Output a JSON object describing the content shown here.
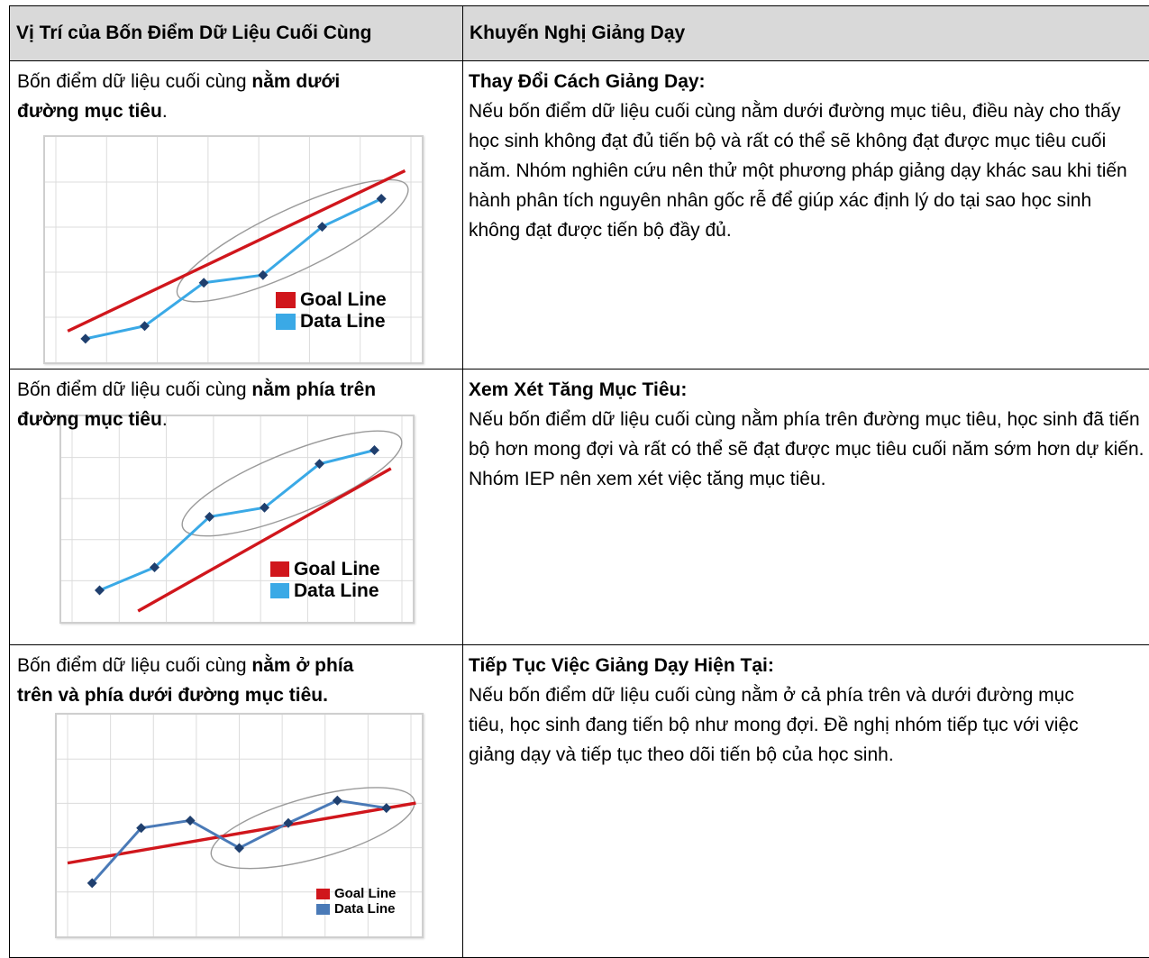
{
  "table": {
    "headers": {
      "location": "Vị Trí của Bốn Điểm Dữ Liệu Cuối Cùng",
      "recommendation": "Khuyến Nghị Giảng Dạy"
    },
    "rows": [
      {
        "location_prefix": "Bốn điểm dữ liệu cuối cùng ",
        "location_bold": "nằm dưới đường mục tiêu",
        "location_suffix": ".",
        "rec_title": "Thay Đổi Cách Giảng Dạy:",
        "rec_body": "Nếu bốn điểm dữ liệu cuối cùng nằm dưới đường mục tiêu, điều này cho thấy học sinh không đạt đủ tiến bộ và rất có thể sẽ không đạt được mục tiêu cuối năm. Nhóm nghiên cứu nên thử một phương pháp giảng dạy khác sau khi tiến hành phân tích nguyên nhân gốc rễ để giúp xác định lý do tại sao học sinh không đạt được tiến bộ đầy đủ."
      },
      {
        "location_prefix": "Bốn điểm dữ liệu cuối cùng ",
        "location_bold": "nằm phía trên đường mục tiêu",
        "location_suffix": ".",
        "rec_title": "Xem Xét Tăng Mục Tiêu:",
        "rec_body": "Nếu bốn điểm dữ liệu cuối cùng nằm phía trên đường mục tiêu, học sinh đã tiến bộ hơn mong đợi và rất có thể sẽ đạt được mục tiêu cuối năm sớm hơn dự kiến. Nhóm IEP nên xem xét việc tăng mục tiêu."
      },
      {
        "location_prefix": "Bốn điểm dữ liệu cuối cùng ",
        "location_bold": "nằm ở phía trên và phía dưới đường mục tiêu.",
        "location_suffix": "",
        "rec_title": "Tiếp Tục Việc Giảng Dạy Hiện Tại:",
        "rec_body": "Nếu bốn điểm dữ liệu cuối cùng nằm ở cả phía trên và dưới đường mục tiêu, học sinh đang tiến bộ như mong đợi. Đề nghị nhóm tiếp tục với việc giảng dạy và tiếp tục theo dõi tiến bộ của học sinh."
      }
    ]
  },
  "chart_data": [
    {
      "type": "line",
      "x": [
        1,
        2,
        3,
        4,
        5,
        6
      ],
      "series": [
        {
          "name": "Goal Line",
          "kind": "goal",
          "x": [
            0.7,
            6.4
          ],
          "values": [
            1.3,
            7.6
          ],
          "color": "#d0161c"
        },
        {
          "name": "Data Line",
          "kind": "data",
          "values": [
            1.0,
            1.5,
            3.2,
            3.5,
            5.4,
            6.5
          ],
          "color": "#3aa9e6"
        }
      ],
      "highlight": "last four data points circled",
      "legend": "bottom-right",
      "grid": true,
      "xlim": [
        0.5,
        6.5
      ],
      "ylim": [
        0.5,
        8.5
      ]
    },
    {
      "type": "line",
      "x": [
        1,
        2,
        3,
        4,
        5,
        6
      ],
      "series": [
        {
          "name": "Goal Line",
          "kind": "goal",
          "x": [
            1.7,
            6.3
          ],
          "values": [
            0.5,
            6.7
          ],
          "color": "#d0161c"
        },
        {
          "name": "Data Line",
          "kind": "data",
          "values": [
            1.4,
            2.4,
            4.6,
            5.0,
            6.9,
            7.5
          ],
          "color": "#3aa9e6"
        }
      ],
      "highlight": "last four data points circled",
      "legend": "bottom-right",
      "grid": true,
      "xlim": [
        0.5,
        6.5
      ],
      "ylim": [
        0.5,
        8.5
      ]
    },
    {
      "type": "line",
      "x": [
        1,
        2,
        3,
        4,
        5,
        6,
        7
      ],
      "series": [
        {
          "name": "Goal Line",
          "kind": "goal",
          "x": [
            0.5,
            7.6
          ],
          "values": [
            3.0,
            5.4
          ],
          "color": "#d0161c"
        },
        {
          "name": "Data Line",
          "kind": "data",
          "values": [
            2.2,
            4.4,
            4.7,
            3.6,
            4.6,
            5.5,
            5.2
          ],
          "color": "#4a7ab7"
        }
      ],
      "highlight": "last four data points circled",
      "legend": "bottom-right",
      "grid": true,
      "xlim": [
        0.5,
        7.5
      ],
      "ylim": [
        0.5,
        8.5
      ]
    }
  ]
}
